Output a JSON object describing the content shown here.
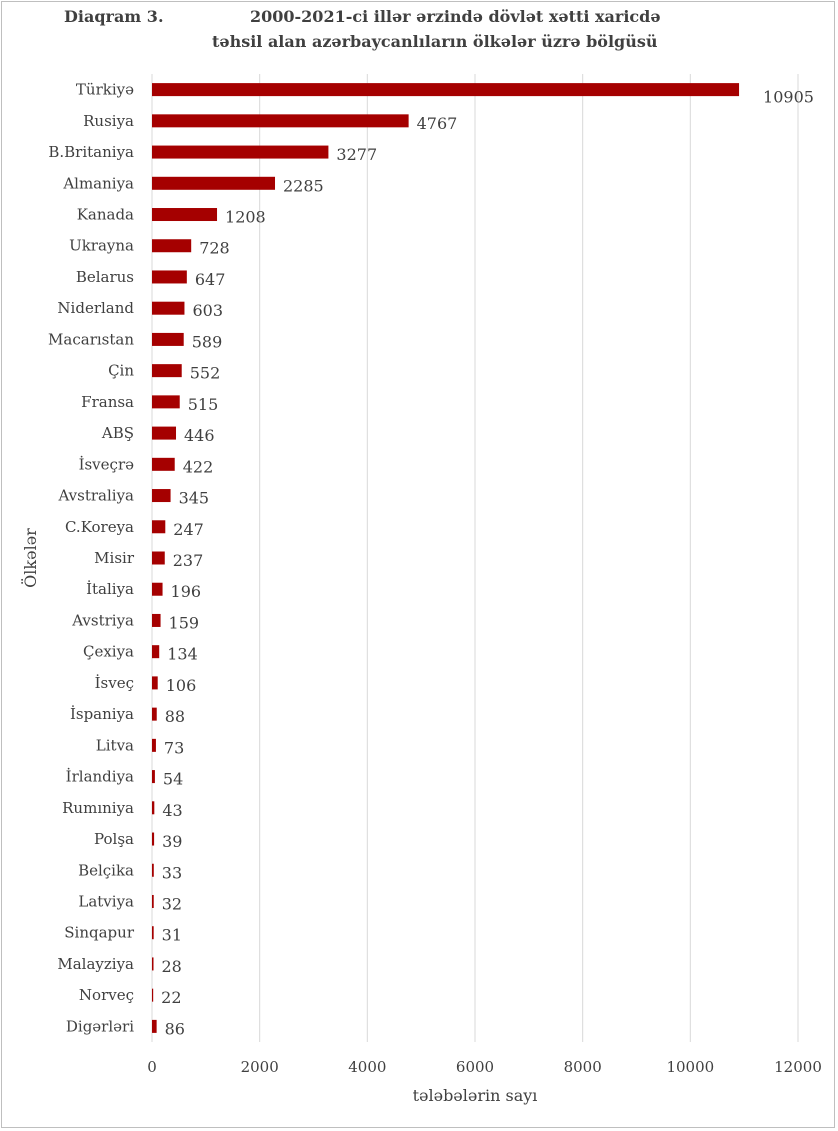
{
  "title": {
    "prefix": "Diaqram  3.",
    "line1": "2000-2021-ci  illər ərzində dövlət xətti xaricdə",
    "line2": "təhsil  alan azərbaycanlıların ölkələr üzrə bölgüsü"
  },
  "chart_data": {
    "type": "bar",
    "orientation": "horizontal",
    "xlabel": "tələbələrin sayı",
    "ylabel": "Ölkələr",
    "xlim": [
      0,
      12000
    ],
    "xticks": [
      0,
      2000,
      4000,
      6000,
      8000,
      10000,
      12000
    ],
    "grid": true,
    "bar_color": "#A50000",
    "categories": [
      "Türkiyə",
      "Rusiya",
      "B.Britaniya",
      "Almaniya",
      "Kanada",
      "Ukrayna",
      "Belarus",
      "Niderland",
      "Macarıstan",
      "Çin",
      "Fransa",
      "ABŞ",
      "İsveçrə",
      "Avstraliya",
      "C.Koreya",
      "Misir",
      "İtaliya",
      "Avstriya",
      "Çexiya",
      "İsveç",
      "İspaniya",
      "Litva",
      "İrlandiya",
      "Rumıniya",
      "Polşa",
      "Belçika",
      "Latviya",
      "Sinqapur",
      "Malayziya",
      "Norveç",
      "Digərləri"
    ],
    "values": [
      10905,
      4767,
      3277,
      2285,
      1208,
      728,
      647,
      603,
      589,
      552,
      515,
      446,
      422,
      345,
      247,
      237,
      196,
      159,
      134,
      106,
      88,
      73,
      54,
      43,
      39,
      33,
      32,
      31,
      28,
      22,
      86
    ]
  }
}
